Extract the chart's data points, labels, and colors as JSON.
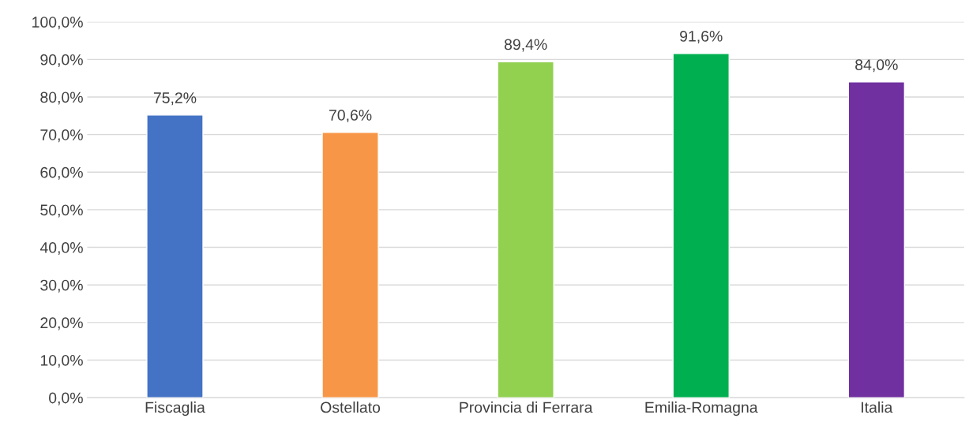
{
  "chart_data": {
    "type": "bar",
    "categories": [
      "Fiscaglia",
      "Ostellato",
      "Provincia di Ferrara",
      "Emilia-Romagna",
      "Italia"
    ],
    "values": [
      75.2,
      70.6,
      89.4,
      91.6,
      84.0
    ],
    "colors": [
      "#4472c4",
      "#f79646",
      "#92d050",
      "#00b050",
      "#7030a0"
    ],
    "value_labels": [
      "75,2%",
      "70,6%",
      "89,4%",
      "91,6%",
      "84,0%"
    ],
    "ylim": [
      0,
      100
    ],
    "yticks": [
      {
        "value": 0,
        "label": "0,0%"
      },
      {
        "value": 10,
        "label": "10,0%"
      },
      {
        "value": 20,
        "label": "20,0%"
      },
      {
        "value": 30,
        "label": "30,0%"
      },
      {
        "value": 40,
        "label": "40,0%"
      },
      {
        "value": 50,
        "label": "50,0%"
      },
      {
        "value": 60,
        "label": "60,0%"
      },
      {
        "value": 70,
        "label": "70,0%"
      },
      {
        "value": 80,
        "label": "80,0%"
      },
      {
        "value": 90,
        "label": "90,0%"
      },
      {
        "value": 100,
        "label": "100,0%"
      }
    ],
    "grid": "y",
    "legend": false
  }
}
